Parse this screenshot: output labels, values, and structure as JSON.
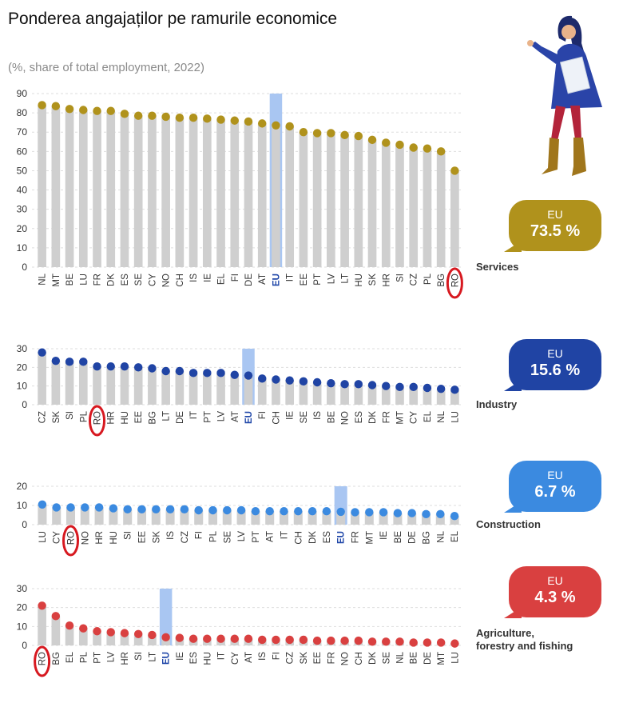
{
  "title": "Ponderea angajaților pe ramurile economice",
  "subtitle": "(%, share of total employment, 2022)",
  "colors": {
    "bar": "#cfcfcf",
    "eu_bar": "#a9c6f2",
    "highlight": "#d71920",
    "eu_label": "#1f46a8"
  },
  "chart_data": [
    {
      "type": "bar",
      "sector": "Services",
      "callout": {
        "label": "EU",
        "value": "73.5 %",
        "color": "#b0921c"
      },
      "dot_color": "#b0921c",
      "ylim": [
        0,
        90
      ],
      "yticks": [
        0,
        10,
        20,
        30,
        40,
        50,
        60,
        70,
        80,
        90
      ],
      "grid": true,
      "categories": [
        "NL",
        "MT",
        "BE",
        "LU",
        "FR",
        "DK",
        "ES",
        "SE",
        "CY",
        "NO",
        "CH",
        "IS",
        "IE",
        "EL",
        "FI",
        "DE",
        "AT",
        "EU",
        "IT",
        "EE",
        "PT",
        "LV",
        "LT",
        "HU",
        "SK",
        "HR",
        "SI",
        "CZ",
        "PL",
        "BG",
        "RO"
      ],
      "values": [
        84,
        83.5,
        82,
        81.5,
        81,
        81,
        79.5,
        78.5,
        78.5,
        78,
        77.5,
        77.5,
        77,
        76.5,
        76,
        75.5,
        74.5,
        73.5,
        73,
        70,
        69.5,
        69.5,
        68.5,
        68,
        66,
        64.5,
        63.5,
        62,
        61.5,
        60,
        50
      ],
      "highlight": "RO"
    },
    {
      "type": "bar",
      "sector": "Industry",
      "callout": {
        "label": "EU",
        "value": "15.6 %",
        "color": "#2044a4"
      },
      "dot_color": "#2044a4",
      "ylim": [
        0,
        30
      ],
      "yticks": [
        0,
        10,
        20,
        30
      ],
      "grid": true,
      "categories": [
        "CZ",
        "SK",
        "SI",
        "PL",
        "RO",
        "HR",
        "HU",
        "EE",
        "BG",
        "LT",
        "DE",
        "IT",
        "PT",
        "LV",
        "AT",
        "EU",
        "FI",
        "CH",
        "IE",
        "SE",
        "IS",
        "BE",
        "NO",
        "ES",
        "DK",
        "FR",
        "MT",
        "CY",
        "EL",
        "NL",
        "LU"
      ],
      "values": [
        28,
        23.5,
        23,
        23,
        20.5,
        20.5,
        20.5,
        20,
        19.5,
        18,
        18,
        17,
        17,
        17,
        16,
        15.6,
        14,
        13.5,
        13,
        12.5,
        12,
        11.5,
        11,
        11,
        10.5,
        10,
        9.5,
        9.5,
        9,
        8.5,
        8
      ],
      "highlight": "RO"
    },
    {
      "type": "bar",
      "sector": "Construction",
      "callout": {
        "label": "EU",
        "value": "6.7 %",
        "color": "#3b8ae0"
      },
      "dot_color": "#3b8ae0",
      "ylim": [
        0,
        20
      ],
      "yticks": [
        0,
        10,
        20
      ],
      "grid": true,
      "categories": [
        "LU",
        "CY",
        "RO",
        "NO",
        "HR",
        "HU",
        "SI",
        "EE",
        "SK",
        "IS",
        "CZ",
        "FI",
        "PL",
        "SE",
        "LV",
        "PT",
        "AT",
        "IT",
        "CH",
        "DK",
        "ES",
        "EU",
        "FR",
        "MT",
        "IE",
        "BE",
        "DE",
        "BG",
        "NL",
        "EL"
      ],
      "values": [
        10.5,
        9,
        9,
        9,
        9,
        8.5,
        8,
        8,
        8,
        8,
        8,
        7.5,
        7.5,
        7.5,
        7.5,
        7,
        7,
        7,
        7,
        7,
        7,
        6.7,
        6.5,
        6.5,
        6.5,
        6,
        6,
        5.5,
        5.5,
        4.5
      ],
      "highlight": "RO"
    },
    {
      "type": "bar",
      "sector": "Agriculture,\nforestry and fishing",
      "callout": {
        "label": "EU",
        "value": "4.3 %",
        "color": "#d94040"
      },
      "dot_color": "#d94040",
      "ylim": [
        0,
        30
      ],
      "yticks": [
        0,
        10,
        20,
        30
      ],
      "grid": true,
      "categories": [
        "RO",
        "BG",
        "EL",
        "PL",
        "PT",
        "LV",
        "HR",
        "SI",
        "LT",
        "EU",
        "IE",
        "ES",
        "HU",
        "IT",
        "CY",
        "AT",
        "IS",
        "FI",
        "CZ",
        "SK",
        "EE",
        "FR",
        "NO",
        "CH",
        "DK",
        "SE",
        "NL",
        "BE",
        "DE",
        "MT",
        "LU"
      ],
      "values": [
        21,
        15.5,
        10.5,
        9,
        7.5,
        7,
        6.5,
        6,
        5.5,
        4.3,
        4,
        3.5,
        3.5,
        3.5,
        3.5,
        3.5,
        3,
        3,
        3,
        3,
        2.5,
        2.5,
        2.5,
        2.5,
        2,
        2,
        2,
        1.5,
        1.5,
        1.5,
        1
      ],
      "highlight": "RO"
    }
  ]
}
